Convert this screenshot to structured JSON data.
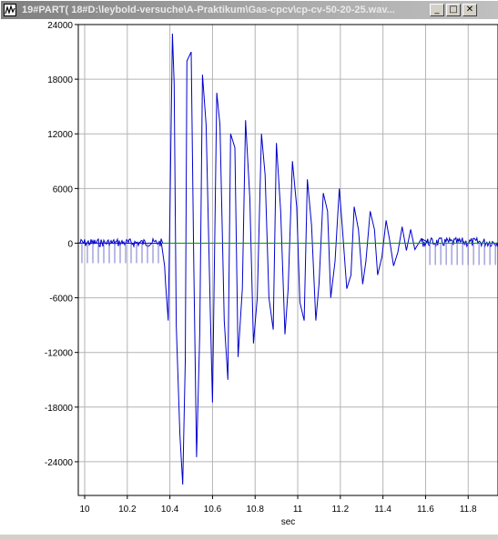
{
  "window": {
    "title": "19#PART( 18#D:\\leybold-versuche\\A-Praktikum\\Gas-cpcv\\cp-cv-50-20-25.wav...",
    "minimize_glyph": "_",
    "maximize_glyph": "□",
    "close_glyph": "✕"
  },
  "chart_data": {
    "type": "line",
    "title": "",
    "xlabel": "sec",
    "ylabel": "",
    "xlim": [
      9.97,
      11.94
    ],
    "ylim": [
      -27700,
      24000
    ],
    "x_ticks": [
      10,
      10.2,
      10.4,
      10.6,
      10.8,
      11,
      11.2,
      11.4,
      11.6,
      11.8
    ],
    "x_tick_labels": [
      "10",
      "10.2",
      "10.4",
      "10.6",
      "10.8",
      "11",
      "11.2",
      "11.4",
      "11.6",
      "11.8"
    ],
    "y_ticks": [
      24000,
      18000,
      12000,
      6000,
      0,
      -6000,
      -12000,
      -18000,
      -24000
    ],
    "y_tick_labels": [
      "24000",
      "18000",
      "12000",
      "6000",
      "0",
      "-6000",
      "-12000",
      "-18000",
      "-24000"
    ],
    "grid": true,
    "series": [
      {
        "color": "#0000cc",
        "x": [
          9.97,
          10.3,
          10.36,
          10.375,
          10.38,
          10.392,
          10.4,
          10.412,
          10.42,
          10.43,
          10.447,
          10.46,
          10.472,
          10.48,
          10.5,
          10.512,
          10.525,
          10.54,
          10.553,
          10.57,
          10.59,
          10.6,
          10.62,
          10.635,
          10.655,
          10.672,
          10.685,
          10.705,
          10.72,
          10.74,
          10.755,
          10.775,
          10.792,
          10.81,
          10.83,
          10.847,
          10.865,
          10.885,
          10.9,
          10.92,
          10.94,
          10.955,
          10.975,
          10.995,
          11.01,
          11.03,
          11.045,
          11.065,
          11.085,
          11.1,
          11.12,
          11.14,
          11.155,
          11.175,
          11.195,
          11.21,
          11.23,
          11.25,
          11.265,
          11.285,
          11.305,
          11.32,
          11.34,
          11.36,
          11.375,
          11.395,
          11.415,
          11.43,
          11.45,
          11.47,
          11.49,
          11.51,
          11.53,
          11.55,
          11.58,
          11.62,
          11.94
        ],
        "y": [
          0,
          0,
          0,
          -2500,
          -4500,
          -8500,
          3000,
          23000,
          17500,
          -9000,
          -21000,
          -26500,
          -13000,
          20000,
          21000,
          -2000,
          -23500,
          -10000,
          18500,
          13000,
          -8000,
          -17500,
          16500,
          13000,
          -8500,
          -15000,
          12000,
          10500,
          -12500,
          -5000,
          13500,
          5000,
          -11000,
          -6000,
          12000,
          7500,
          -6000,
          -9500,
          11000,
          3500,
          -10000,
          -5000,
          9000,
          4000,
          -6500,
          -8500,
          7000,
          2000,
          -8500,
          -4500,
          5500,
          3500,
          -6000,
          -2000,
          6000,
          1500,
          -5000,
          -3500,
          4000,
          1500,
          -4500,
          -2000,
          3500,
          1500,
          -3500,
          -1500,
          2500,
          500,
          -2500,
          -1000,
          1800,
          -800,
          1500,
          -700,
          500,
          0,
          0
        ]
      },
      {
        "color": "#009900",
        "x": [
          10.36,
          11.94
        ],
        "y": [
          0,
          0
        ]
      }
    ]
  }
}
